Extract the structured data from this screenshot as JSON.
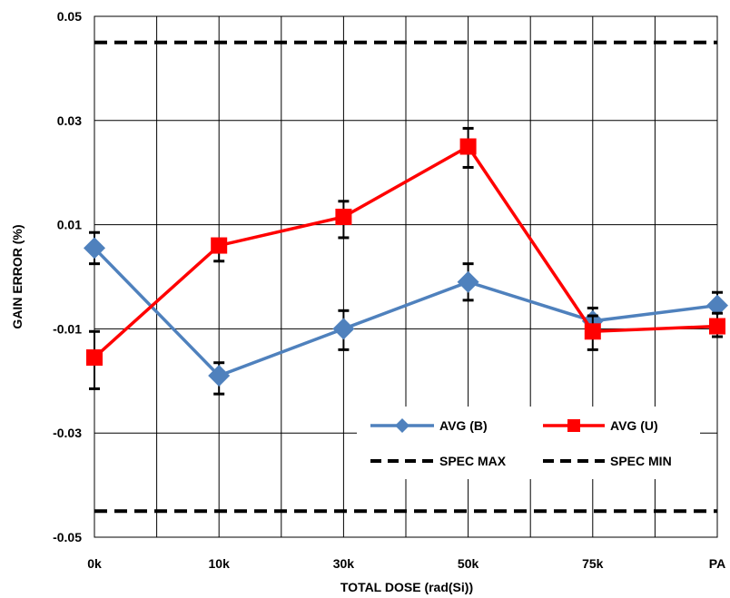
{
  "chart_data": {
    "type": "line",
    "title": "",
    "xlabel": "TOTAL DOSE (rad(Si))",
    "ylabel": "GAIN ERROR (%)",
    "categories": [
      "0k",
      "10k",
      "30k",
      "50k",
      "75k",
      "PA"
    ],
    "ylim": [
      -0.05,
      0.05
    ],
    "yticks": [
      "0.05",
      "0.03",
      "0.01",
      "-0.01",
      "-0.03",
      "-0.05"
    ],
    "ytick_values": [
      0.05,
      0.03,
      0.01,
      -0.01,
      -0.03,
      -0.05
    ],
    "grid": true,
    "legend_position": "bottom-right",
    "series": [
      {
        "name": "AVG (B)",
        "color": "#4F81BD",
        "marker": "diamond",
        "values": [
          0.0055,
          -0.019,
          -0.01,
          -0.001,
          -0.0085,
          -0.0055
        ],
        "error_low": [
          0.0025,
          -0.0225,
          -0.014,
          -0.0045,
          -0.0115,
          -0.0085
        ],
        "error_high": [
          0.0085,
          -0.0165,
          -0.0065,
          0.0025,
          -0.006,
          -0.003
        ]
      },
      {
        "name": "AVG (U)",
        "color": "#FF0000",
        "marker": "square",
        "values": [
          -0.0155,
          0.006,
          0.0115,
          0.025,
          -0.0105,
          -0.0095
        ],
        "error_low": [
          -0.0215,
          0.003,
          0.0075,
          0.021,
          -0.014,
          -0.0115
        ],
        "error_high": [
          -0.0105,
          0.0065,
          0.0145,
          0.0285,
          -0.0075,
          -0.007
        ]
      }
    ],
    "reference_lines": [
      {
        "name": "SPEC MAX",
        "value": 0.045,
        "color": "#000000",
        "style": "dashed"
      },
      {
        "name": "SPEC MIN",
        "value": -0.045,
        "color": "#000000",
        "style": "dashed"
      }
    ]
  }
}
